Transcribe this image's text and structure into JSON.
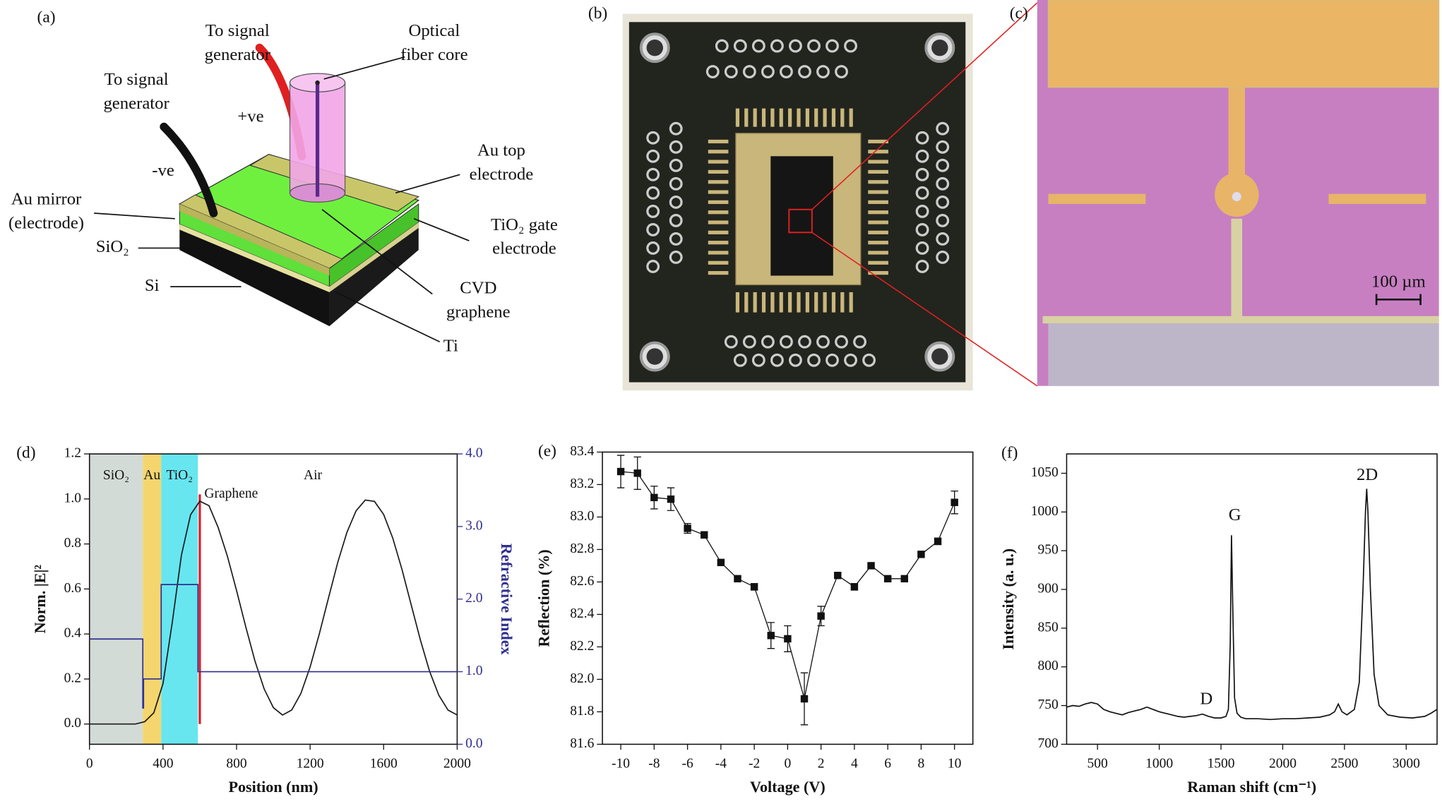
{
  "panel_a": {
    "label": "(a)",
    "callouts": [
      [
        "To signal",
        "generator"
      ],
      [
        "Optical",
        "fiber core"
      ],
      [
        "To signal",
        "generator"
      ],
      [
        "+ve"
      ],
      [
        "-ve"
      ],
      [
        "Au top",
        "electrode"
      ],
      [
        "Au mirror",
        "(electrode)"
      ],
      [
        "TiO₂ gate",
        "electrode"
      ],
      [
        "SiO₂"
      ],
      [
        "Si"
      ],
      [
        "CVD",
        "graphene"
      ],
      [
        "Ti"
      ]
    ]
  },
  "panel_b": {
    "label": "(b)"
  },
  "panel_c": {
    "label": "(c)",
    "scale_bar": "100 µm"
  },
  "chart_data": [
    {
      "type": "line",
      "label": "(d)",
      "xlabel": "Position (nm)",
      "ylabel": "Norm. |E|²",
      "y2label": "Refractive Index",
      "xlim": [
        0,
        2000
      ],
      "xticks": [
        0,
        400,
        800,
        1200,
        1600,
        2000
      ],
      "ylim": [
        -0.09,
        1.2
      ],
      "yticks": [
        {
          "value": 0,
          "label": "0.0"
        },
        0.2,
        0.4,
        0.6,
        0.8,
        {
          "value": 1,
          "label": "1.0"
        },
        1.2
      ],
      "y2lim": [
        0,
        4
      ],
      "y2ticks": [
        {
          "value": 0,
          "label": "0.0"
        },
        {
          "value": 1,
          "label": "1.0"
        },
        {
          "value": 2,
          "label": "2.0"
        },
        {
          "value": 3,
          "label": "3.0"
        },
        {
          "value": 4,
          "label": "4.0"
        }
      ],
      "y2color": "#2f2f8f",
      "regions": [
        {
          "label": "SiO₂",
          "x": [
            0,
            290
          ],
          "color": "#d3dbd7"
        },
        {
          "label": "Au",
          "x": [
            290,
            390
          ],
          "color": "#f5d56e"
        },
        {
          "label": "TiO₂",
          "x": [
            390,
            590
          ],
          "color": "#67e6f0"
        },
        {
          "label": "Air",
          "x": [
            590,
            2000
          ],
          "color": "#ffffff"
        }
      ],
      "marker": {
        "label": "Graphene",
        "x": 600,
        "color": "#d9202b"
      },
      "series": [
        {
          "color": "#1a1a1a",
          "x": [
            0,
            100,
            200,
            250,
            300,
            350,
            400,
            450,
            500,
            550,
            600,
            650,
            700,
            750,
            800,
            850,
            900,
            950,
            1000,
            1050,
            1100,
            1150,
            1200,
            1250,
            1300,
            1350,
            1400,
            1450,
            1500,
            1550,
            1600,
            1650,
            1700,
            1750,
            1800,
            1850,
            1900,
            1950,
            2000
          ],
          "values": [
            0,
            0,
            0,
            0,
            0.01,
            0.05,
            0.18,
            0.45,
            0.75,
            0.93,
            0.99,
            0.97,
            0.873,
            0.746,
            0.593,
            0.432,
            0.28,
            0.156,
            0.073,
            0.04,
            0.062,
            0.136,
            0.253,
            0.4,
            0.56,
            0.717,
            0.851,
            0.947,
            0.995,
            0.989,
            0.931,
            0.825,
            0.686,
            0.529,
            0.373,
            0.234,
            0.128,
            0.062,
            0.04
          ]
        },
        {
          "color": "#2f2f8f",
          "axis": "y2",
          "x": [
            0,
            290,
            290,
            294,
            294,
            390,
            390,
            590,
            590,
            2000
          ],
          "values": [
            1.45,
            1.45,
            0.5,
            0.5,
            0.9,
            0.9,
            2.2,
            2.2,
            1.0,
            1.0
          ]
        }
      ]
    },
    {
      "type": "scatter",
      "label": "(e)",
      "xlabel": "Voltage (V)",
      "ylabel": "Reflection (%)",
      "x": [
        -10,
        -9,
        -8,
        -7,
        -6,
        -5,
        -4,
        -3,
        -2,
        -1,
        0,
        1,
        2,
        3,
        4,
        5,
        6,
        7,
        8,
        9,
        10
      ],
      "series": [
        {
          "color": "#111111",
          "values": [
            83.28,
            83.27,
            83.12,
            83.11,
            82.93,
            82.89,
            82.72,
            82.62,
            82.57,
            82.27,
            82.25,
            81.88,
            82.39,
            82.64,
            82.57,
            82.7,
            82.62,
            82.62,
            82.77,
            82.85,
            83.09
          ],
          "errors": [
            0.1,
            0.1,
            0.07,
            0.07,
            0.03,
            0.02,
            0.01,
            0.01,
            0.02,
            0.08,
            0.08,
            0.16,
            0.06,
            0.01,
            0.02,
            0.01,
            0.01,
            0.01,
            0.01,
            0.02,
            0.07
          ]
        }
      ],
      "xlim": [
        -11.1,
        11.1
      ],
      "xticks": [
        -10,
        -8,
        -6,
        -4,
        -2,
        0,
        2,
        4,
        6,
        8,
        10
      ],
      "ylim": [
        81.6,
        83.4
      ],
      "yticks": [
        81.6,
        81.8,
        {
          "value": 82,
          "label": "82.0"
        },
        82.2,
        82.4,
        82.6,
        82.8,
        {
          "value": 83,
          "label": "83.0"
        },
        83.2,
        83.4
      ]
    },
    {
      "type": "line",
      "label": "(f)",
      "xlabel": "Raman shift (cm⁻¹)",
      "ylabel": "Intensity (a. u.)",
      "xlim": [
        250,
        3250
      ],
      "xticks": [
        500,
        1000,
        1500,
        2000,
        2500,
        3000
      ],
      "ylim": [
        700,
        1075
      ],
      "yticks": [
        700,
        750,
        800,
        850,
        900,
        950,
        1000,
        1050
      ],
      "annotations": [
        "D",
        "G",
        "2D"
      ],
      "series": [
        {
          "color": "#111111",
          "x": [
            250,
            300,
            350,
            400,
            450,
            500,
            550,
            600,
            650,
            700,
            750,
            800,
            850,
            900,
            950,
            1000,
            1050,
            1100,
            1150,
            1200,
            1250,
            1300,
            1350,
            1400,
            1450,
            1500,
            1540,
            1560,
            1575,
            1585,
            1595,
            1610,
            1630,
            1660,
            1700,
            1800,
            1900,
            2000,
            2100,
            2200,
            2300,
            2380,
            2420,
            2450,
            2480,
            2520,
            2580,
            2620,
            2650,
            2670,
            2680,
            2690,
            2710,
            2740,
            2780,
            2850,
            2950,
            3050,
            3150,
            3200,
            3250
          ],
          "values": [
            748,
            750,
            749,
            752,
            754,
            752,
            745,
            742,
            740,
            738,
            741,
            743,
            745,
            748,
            745,
            742,
            740,
            738,
            736,
            735,
            736,
            737,
            739,
            736,
            734,
            734,
            736,
            745,
            830,
            970,
            880,
            760,
            740,
            735,
            733,
            733,
            732,
            733,
            733,
            734,
            735,
            738,
            742,
            752,
            742,
            738,
            745,
            780,
            900,
            1000,
            1030,
            1000,
            900,
            790,
            750,
            738,
            735,
            734,
            736,
            740,
            745
          ]
        }
      ]
    }
  ]
}
